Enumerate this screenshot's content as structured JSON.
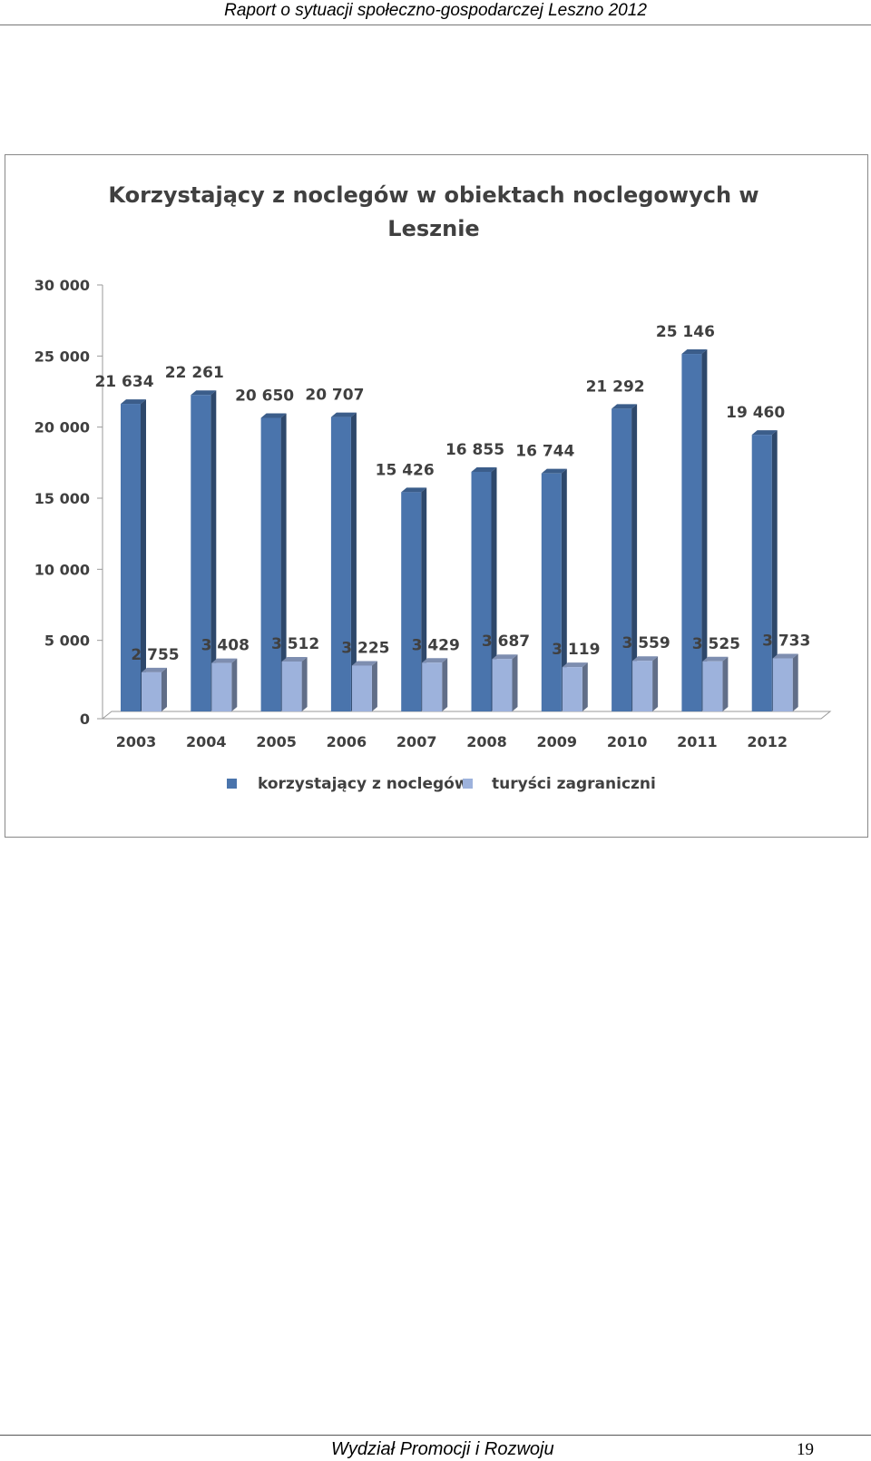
{
  "header": {
    "title": "Raport o sytuacji społeczno-gospodarczej Leszno 2012"
  },
  "footer": {
    "label": "Wydział Promocji i Rozwoju",
    "page_number": "19"
  },
  "chart_data": {
    "type": "bar",
    "title_line1": "Korzystający z noclegów w obiektach noclegowych w",
    "title_line2": "Lesznie",
    "categories": [
      "2003",
      "2004",
      "2005",
      "2006",
      "2007",
      "2008",
      "2009",
      "2010",
      "2011",
      "2012"
    ],
    "series": [
      {
        "name": "korzystający z noclegów",
        "color": "#4A74AC",
        "values": [
          21634,
          22261,
          20650,
          20707,
          15426,
          16855,
          16744,
          21292,
          25146,
          19460
        ],
        "labels": [
          "21 634",
          "22 261",
          "20 650",
          "20 707",
          "15 426",
          "16 855",
          "16 744",
          "21 292",
          "25 146",
          "19 460"
        ]
      },
      {
        "name": "turyści zagraniczni",
        "color": "#9DB2DC",
        "values": [
          2755,
          3408,
          3512,
          3225,
          3429,
          3687,
          3119,
          3559,
          3525,
          3733
        ],
        "labels": [
          "2 755",
          "3 408",
          "3 512",
          "3 225",
          "3 429",
          "3 687",
          "3 119",
          "3 559",
          "3 525",
          "3 733"
        ]
      }
    ],
    "ylim": [
      0,
      30000
    ],
    "yticks": [
      0,
      5000,
      10000,
      15000,
      20000,
      25000,
      30000
    ],
    "ytick_labels": [
      "0",
      "5 000",
      "10 000",
      "15 000",
      "20 000",
      "25 000",
      "30 000"
    ],
    "legend_position": "bottom",
    "grid": false
  }
}
